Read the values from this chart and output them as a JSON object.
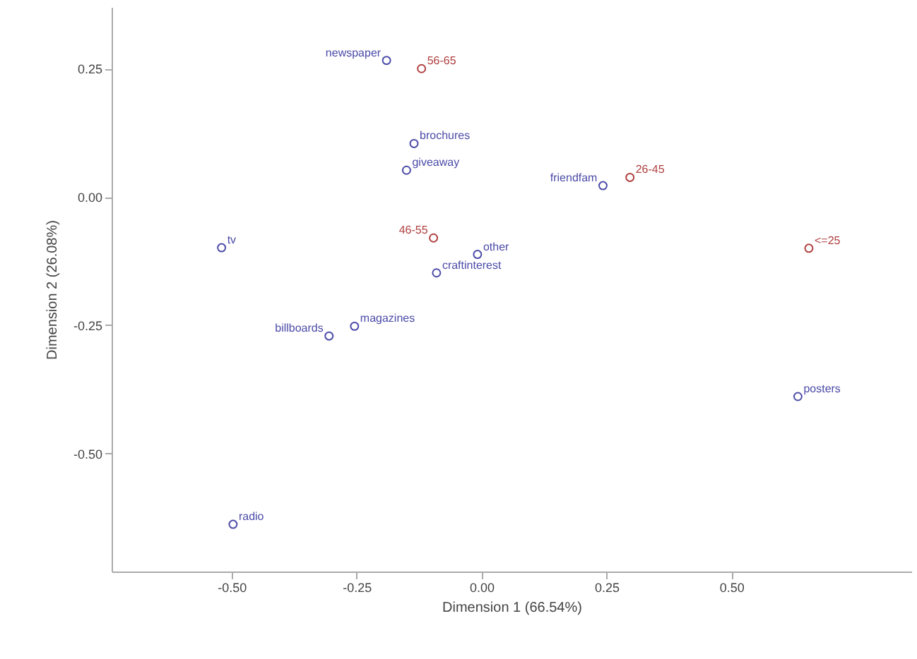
{
  "chart_data": {
    "type": "scatter",
    "xlabel": "Dimension 1 (66.54%)",
    "ylabel": "Dimension 2 (26.08%)",
    "xlim": [
      -0.74,
      0.86
    ],
    "ylim": [
      -0.73,
      0.37
    ],
    "xticks": [
      {
        "value": -0.5,
        "label": "-0.50"
      },
      {
        "value": -0.25,
        "label": "-0.25"
      },
      {
        "value": 0,
        "label": "0.00"
      },
      {
        "value": 0.25,
        "label": "0.25"
      },
      {
        "value": 0.5,
        "label": "0.50"
      }
    ],
    "yticks": [
      {
        "value": 0.25,
        "label": "0.25"
      },
      {
        "value": 0,
        "label": "0.00"
      },
      {
        "value": -0.25,
        "label": "-0.25"
      },
      {
        "value": -0.5,
        "label": "-0.50"
      }
    ],
    "grid": false,
    "marker": "circle",
    "series": [
      {
        "color": "#4b4ba8",
        "x": [
          -0.19,
          -0.135,
          -0.15,
          -0.52,
          -0.008,
          -0.09,
          0.243,
          -0.254,
          -0.305,
          0.633,
          -0.497
        ],
        "values": [
          0.266,
          0.104,
          0.052,
          -0.099,
          -0.112,
          -0.148,
          0.022,
          -0.252,
          -0.271,
          -0.389,
          -0.638
        ]
      },
      {
        "color": "#b04040",
        "x": [
          -0.12,
          -0.096,
          0.297,
          0.655
        ],
        "values": [
          0.25,
          -0.08,
          0.038,
          -0.1
        ]
      }
    ],
    "annotations": [
      {
        "text": "newspaper",
        "x": -0.19,
        "y": 0.266
      },
      {
        "text": "brochures",
        "x": -0.135,
        "y": 0.104
      },
      {
        "text": "giveaway",
        "x": -0.15,
        "y": 0.052
      },
      {
        "text": "tv",
        "x": -0.52,
        "y": -0.099
      },
      {
        "text": "other",
        "x": -0.008,
        "y": -0.112
      },
      {
        "text": "craftinterest",
        "x": -0.09,
        "y": -0.148
      },
      {
        "text": "friendfam",
        "x": 0.243,
        "y": 0.022
      },
      {
        "text": "magazines",
        "x": -0.254,
        "y": -0.252
      },
      {
        "text": "billboards",
        "x": -0.305,
        "y": -0.271
      },
      {
        "text": "posters",
        "x": 0.633,
        "y": -0.389
      },
      {
        "text": "radio",
        "x": -0.497,
        "y": -0.638
      },
      {
        "text": "56-65",
        "x": -0.12,
        "y": 0.25
      },
      {
        "text": "46-55",
        "x": -0.096,
        "y": -0.08
      },
      {
        "text": "26-45",
        "x": 0.297,
        "y": 0.038
      },
      {
        "text": "<=25",
        "x": 0.655,
        "y": -0.1
      }
    ]
  }
}
